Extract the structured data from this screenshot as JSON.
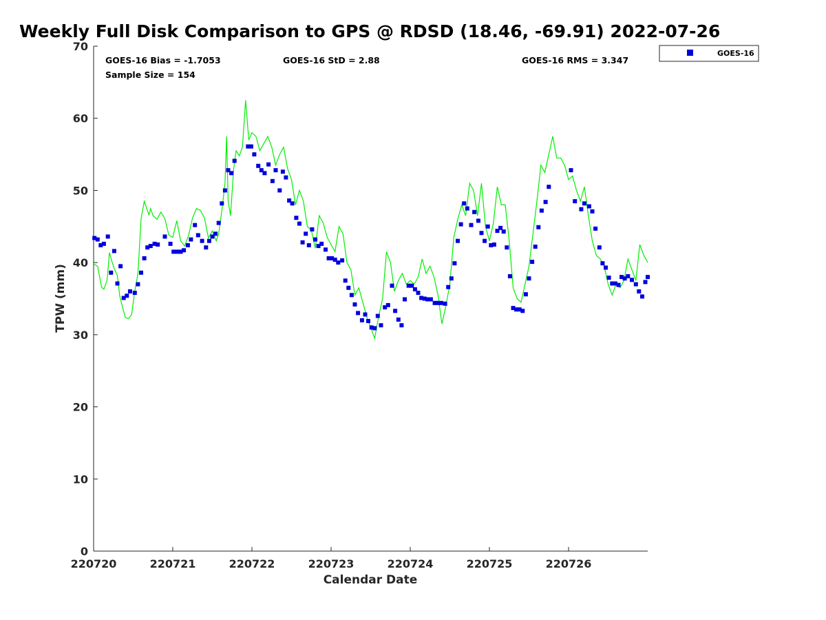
{
  "chart_data": {
    "type": "scatter",
    "title": "Weekly Full Disk Comparison to GPS @ RDSD (18.46, -69.91) 2022-07-26",
    "xlabel": "Calendar Date",
    "ylabel": "TPW (mm)",
    "xlim": [
      0,
      7
    ],
    "ylim": [
      0,
      70
    ],
    "yticks": [
      0,
      10,
      20,
      30,
      40,
      50,
      60,
      70
    ],
    "xticks": [
      {
        "x": 0,
        "label": "220720"
      },
      {
        "x": 1,
        "label": "220721"
      },
      {
        "x": 2,
        "label": "220722"
      },
      {
        "x": 3,
        "label": "220723"
      },
      {
        "x": 4,
        "label": "220724"
      },
      {
        "x": 5,
        "label": "220725"
      },
      {
        "x": 6,
        "label": "220726"
      }
    ],
    "grid": false,
    "legend_position": "top-right, outside",
    "stats": {
      "bias": "GOES-16 Bias = -1.7053",
      "std": "GOES-16 StD = 2.88",
      "rms": "GOES-16 RMS = 3.347",
      "sample": "Sample Size = 154"
    },
    "series": [
      {
        "name": "GOES-16",
        "marker": "square",
        "color": "#0000dd",
        "x": [
          0.01,
          0.05,
          0.09,
          0.13,
          0.18,
          0.22,
          0.26,
          0.3,
          0.34,
          0.38,
          0.42,
          0.46,
          0.52,
          0.56,
          0.6,
          0.64,
          0.68,
          0.72,
          0.77,
          0.81,
          0.9,
          0.97,
          1.01,
          1.06,
          1.1,
          1.14,
          1.19,
          1.23,
          1.28,
          1.32,
          1.37,
          1.42,
          1.46,
          1.5,
          1.54,
          1.58,
          1.62,
          1.66,
          1.7,
          1.74,
          1.78,
          1.95,
          1.99,
          2.03,
          2.08,
          2.12,
          2.16,
          2.21,
          2.26,
          2.3,
          2.35,
          2.39,
          2.43,
          2.47,
          2.51,
          2.56,
          2.6,
          2.64,
          2.68,
          2.72,
          2.76,
          2.8,
          2.84,
          2.88,
          2.93,
          2.97,
          3.01,
          3.05,
          3.09,
          3.14,
          3.18,
          3.22,
          3.26,
          3.3,
          3.34,
          3.39,
          3.43,
          3.47,
          3.51,
          3.55,
          3.59,
          3.63,
          3.68,
          3.72,
          3.77,
          3.81,
          3.85,
          3.89,
          3.93,
          3.98,
          4.02,
          4.06,
          4.1,
          4.14,
          4.18,
          4.22,
          4.26,
          4.31,
          4.35,
          4.39,
          4.44,
          4.48,
          4.52,
          4.56,
          4.6,
          4.64,
          4.68,
          4.72,
          4.77,
          4.81,
          4.86,
          4.9,
          4.94,
          4.98,
          5.02,
          5.06,
          5.1,
          5.14,
          5.18,
          5.22,
          5.26,
          5.3,
          5.34,
          5.38,
          5.42,
          5.46,
          5.5,
          5.54,
          5.58,
          5.62,
          5.66,
          5.71,
          5.75,
          6.03,
          6.08,
          6.16,
          6.2,
          6.26,
          6.3,
          6.34,
          6.39,
          6.43,
          6.47,
          6.51,
          6.55,
          6.59,
          6.63,
          6.67,
          6.71,
          6.75,
          6.8,
          6.85,
          6.89,
          6.93,
          6.97,
          7.0
        ],
        "y": [
          43.4,
          43.2,
          42.4,
          42.6,
          43.6,
          38.6,
          41.6,
          37.1,
          39.5,
          35.1,
          35.4,
          36.0,
          35.8,
          37.0,
          38.6,
          40.6,
          42.1,
          42.3,
          42.6,
          42.5,
          43.6,
          42.6,
          41.5,
          41.5,
          41.5,
          41.7,
          42.4,
          43.2,
          45.2,
          43.8,
          43.0,
          42.1,
          43.0,
          43.6,
          44.0,
          45.5,
          48.2,
          50.0,
          52.8,
          52.4,
          54.1,
          56.1,
          56.1,
          55.0,
          53.4,
          52.8,
          52.4,
          53.6,
          51.3,
          52.8,
          50.0,
          52.6,
          51.8,
          48.6,
          48.2,
          46.2,
          45.4,
          42.8,
          44.0,
          42.4,
          44.6,
          43.2,
          42.3,
          42.6,
          41.8,
          40.6,
          40.6,
          40.4,
          40.0,
          40.3,
          37.5,
          36.5,
          35.5,
          34.2,
          33.0,
          32.0,
          32.8,
          31.9,
          31.0,
          30.9,
          32.6,
          31.3,
          33.8,
          34.1,
          36.8,
          33.3,
          32.1,
          31.3,
          34.9,
          36.8,
          36.8,
          36.3,
          35.8,
          35.1,
          35.0,
          34.9,
          34.9,
          34.4,
          34.4,
          34.4,
          34.3,
          36.6,
          37.8,
          39.9,
          43.0,
          45.3,
          48.2,
          47.5,
          45.2,
          47.0,
          45.8,
          44.1,
          43.0,
          45.0,
          42.4,
          42.5,
          44.4,
          44.8,
          44.3,
          42.1,
          38.1,
          33.7,
          33.5,
          33.5,
          33.3,
          35.6,
          37.8,
          40.1,
          42.2,
          44.9,
          47.2,
          48.4,
          50.5,
          52.8,
          48.5,
          47.4,
          48.2,
          47.8,
          47.1,
          44.7,
          42.1,
          39.9,
          39.3,
          37.9,
          37.1,
          37.1,
          36.9,
          38.0,
          37.8,
          38.1,
          37.6,
          37.0,
          36.0,
          35.3,
          37.3,
          38.0
        ]
      },
      {
        "name": "",
        "marker": "line",
        "color": "#00ee00",
        "x": [
          0.0,
          0.05,
          0.1,
          0.13,
          0.17,
          0.2,
          0.23,
          0.26,
          0.3,
          0.33,
          0.37,
          0.4,
          0.44,
          0.48,
          0.52,
          0.56,
          0.6,
          0.64,
          0.68,
          0.7,
          0.72,
          0.75,
          0.8,
          0.85,
          0.9,
          0.95,
          1.0,
          1.05,
          1.1,
          1.15,
          1.2,
          1.25,
          1.3,
          1.35,
          1.4,
          1.45,
          1.5,
          1.55,
          1.58,
          1.62,
          1.66,
          1.68,
          1.7,
          1.73,
          1.77,
          1.8,
          1.84,
          1.88,
          1.92,
          1.96,
          2.0,
          2.05,
          2.1,
          2.15,
          2.2,
          2.25,
          2.3,
          2.35,
          2.4,
          2.45,
          2.5,
          2.55,
          2.6,
          2.65,
          2.7,
          2.75,
          2.8,
          2.85,
          2.9,
          2.95,
          3.0,
          3.05,
          3.1,
          3.15,
          3.2,
          3.25,
          3.3,
          3.35,
          3.4,
          3.45,
          3.5,
          3.55,
          3.6,
          3.65,
          3.7,
          3.75,
          3.8,
          3.85,
          3.9,
          3.95,
          4.0,
          4.05,
          4.1,
          4.15,
          4.2,
          4.25,
          4.3,
          4.35,
          4.4,
          4.45,
          4.5,
          4.55,
          4.6,
          4.65,
          4.7,
          4.75,
          4.8,
          4.85,
          4.9,
          4.95,
          5.0,
          5.05,
          5.1,
          5.15,
          5.2,
          5.25,
          5.3,
          5.35,
          5.4,
          5.45,
          5.5,
          5.55,
          5.6,
          5.65,
          5.7,
          5.75,
          5.8,
          5.85,
          5.9,
          5.95,
          6.0,
          6.05,
          6.1,
          6.15,
          6.2,
          6.25,
          6.3,
          6.35,
          6.4,
          6.45,
          6.5,
          6.55,
          6.6,
          6.65,
          6.7,
          6.75,
          6.8,
          6.85,
          6.9,
          6.95,
          7.0
        ],
        "y": [
          39.8,
          39.5,
          36.6,
          36.3,
          37.6,
          41.4,
          40.2,
          39.2,
          38.2,
          35.4,
          33.6,
          32.4,
          32.2,
          32.8,
          36.0,
          38.5,
          46.1,
          48.5,
          47.2,
          46.6,
          47.5,
          46.5,
          46.0,
          47.0,
          46.1,
          43.8,
          43.5,
          45.8,
          43.0,
          42.3,
          43.8,
          46.2,
          47.5,
          47.2,
          46.2,
          43.4,
          44.4,
          43.0,
          44.0,
          47.2,
          51.0,
          57.5,
          48.5,
          46.5,
          53.0,
          55.5,
          54.8,
          56.0,
          62.5,
          57.0,
          58.0,
          57.5,
          55.5,
          56.5,
          57.5,
          56.0,
          53.5,
          55.0,
          56.0,
          53.0,
          51.5,
          48.0,
          50.0,
          48.5,
          45.0,
          44.5,
          42.0,
          46.5,
          45.5,
          43.5,
          42.5,
          41.5,
          45.0,
          44.0,
          40.0,
          39.0,
          35.5,
          36.5,
          34.5,
          32.5,
          31.0,
          29.5,
          32.5,
          35.0,
          41.5,
          40.0,
          36.0,
          37.5,
          38.5,
          37.0,
          37.5,
          37.0,
          38.0,
          40.5,
          38.5,
          39.5,
          38.0,
          35.5,
          31.5,
          34.0,
          37.0,
          43.5,
          46.0,
          48.0,
          46.5,
          51.0,
          50.0,
          46.5,
          51.0,
          45.0,
          43.0,
          45.5,
          50.5,
          48.0,
          48.0,
          43.0,
          36.5,
          35.0,
          34.5,
          37.0,
          39.5,
          44.0,
          48.5,
          53.5,
          52.5,
          55.0,
          57.5,
          54.5,
          54.5,
          53.5,
          51.5,
          52.0,
          50.0,
          48.5,
          50.5,
          46.5,
          43.0,
          41.0,
          40.5,
          39.5,
          37.0,
          35.5,
          37.0,
          36.5,
          37.5,
          40.5,
          39.0,
          37.5,
          42.5,
          41.0,
          40.0
        ]
      }
    ]
  }
}
